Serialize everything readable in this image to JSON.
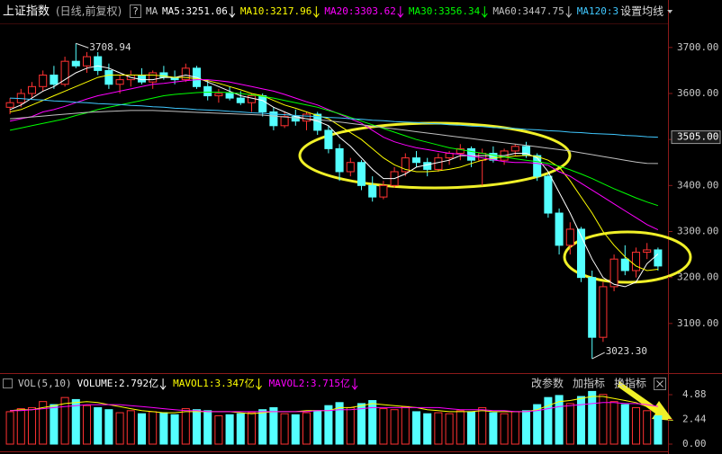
{
  "chart_data": {
    "type": "candlestick",
    "title": "上证指数",
    "subtitle": "(日线,前复权)",
    "header": {
      "help": "?",
      "ma": "MA",
      "settings": "设置均线"
    },
    "up_color": "#ff3232",
    "down_color": "#54ffff",
    "open": [
      3570,
      3580,
      3600,
      3615,
      3640,
      3620,
      3670,
      3660,
      3680,
      3650,
      3620,
      3630,
      3640,
      3625,
      3645,
      3635,
      3630,
      3655,
      3615,
      3595,
      3600,
      3590,
      3580,
      3595,
      3560,
      3530,
      3550,
      3540,
      3555,
      3520,
      3480,
      3430,
      3450,
      3400,
      3375,
      3400,
      3430,
      3460,
      3450,
      3435,
      3460,
      3470,
      3480,
      3455,
      3470,
      3455,
      3475,
      3485,
      3465,
      3420,
      3340,
      3270,
      3305,
      3200,
      3070,
      3180,
      3240,
      3215,
      3255,
      3260
    ],
    "high": [
      3590,
      3610,
      3625,
      3650,
      3660,
      3680,
      3708.94,
      3690,
      3690,
      3665,
      3640,
      3650,
      3655,
      3650,
      3660,
      3650,
      3665,
      3660,
      3630,
      3610,
      3615,
      3605,
      3600,
      3600,
      3570,
      3560,
      3565,
      3560,
      3560,
      3530,
      3490,
      3460,
      3455,
      3420,
      3410,
      3440,
      3470,
      3475,
      3460,
      3470,
      3475,
      3490,
      3485,
      3480,
      3485,
      3480,
      3490,
      3495,
      3470,
      3425,
      3350,
      3320,
      3310,
      3215,
      3190,
      3250,
      3270,
      3265,
      3275,
      3265
    ],
    "low": [
      3555,
      3570,
      3590,
      3605,
      3610,
      3615,
      3655,
      3645,
      3640,
      3610,
      3600,
      3615,
      3620,
      3610,
      3630,
      3620,
      3625,
      3610,
      3585,
      3580,
      3585,
      3575,
      3560,
      3550,
      3520,
      3525,
      3530,
      3520,
      3510,
      3470,
      3410,
      3420,
      3390,
      3365,
      3370,
      3395,
      3420,
      3440,
      3420,
      3430,
      3445,
      3455,
      3440,
      3400,
      3450,
      3445,
      3465,
      3460,
      3410,
      3330,
      3250,
      3250,
      3190,
      3023.3,
      3060,
      3170,
      3205,
      3200,
      3240,
      3215
    ],
    "close": [
      3580,
      3600,
      3615,
      3640,
      3620,
      3670,
      3660,
      3680,
      3650,
      3620,
      3630,
      3640,
      3625,
      3645,
      3635,
      3630,
      3655,
      3615,
      3595,
      3600,
      3590,
      3580,
      3595,
      3560,
      3530,
      3550,
      3540,
      3555,
      3520,
      3480,
      3430,
      3450,
      3400,
      3375,
      3400,
      3430,
      3460,
      3450,
      3435,
      3460,
      3470,
      3480,
      3455,
      3470,
      3455,
      3475,
      3485,
      3465,
      3420,
      3340,
      3270,
      3305,
      3200,
      3070,
      3180,
      3240,
      3215,
      3255,
      3260,
      3225
    ],
    "volume": [
      3.2,
      3.5,
      3.6,
      4.2,
      3.9,
      4.6,
      4.4,
      3.8,
      3.6,
      3.4,
      3.1,
      3.3,
      3.0,
      3.2,
      3.1,
      2.9,
      3.5,
      3.4,
      3.3,
      2.8,
      2.9,
      3.0,
      3.1,
      3.4,
      3.6,
      3.0,
      2.9,
      3.1,
      3.3,
      3.8,
      4.1,
      3.6,
      4.0,
      4.3,
      3.5,
      3.4,
      3.7,
      3.2,
      3.0,
      3.1,
      3.0,
      3.3,
      3.2,
      3.6,
      3.1,
      3.0,
      3.2,
      3.3,
      3.9,
      4.6,
      4.8,
      4.0,
      4.7,
      5.2,
      4.9,
      4.2,
      3.9,
      3.6,
      3.3,
      2.792
    ],
    "series": [
      {
        "name": "MA5:3251.06",
        "color": "#ffffff",
        "values": [
          3565,
          3575,
          3590,
          3605,
          3615,
          3630,
          3645,
          3655,
          3660,
          3655,
          3645,
          3635,
          3630,
          3630,
          3635,
          3635,
          3640,
          3635,
          3625,
          3615,
          3605,
          3595,
          3590,
          3585,
          3570,
          3560,
          3550,
          3545,
          3540,
          3530,
          3505,
          3485,
          3460,
          3435,
          3415,
          3415,
          3425,
          3440,
          3445,
          3450,
          3455,
          3465,
          3465,
          3465,
          3465,
          3465,
          3470,
          3470,
          3460,
          3430,
          3385,
          3340,
          3290,
          3240,
          3200,
          3185,
          3180,
          3190,
          3230,
          3251.06
        ]
      },
      {
        "name": "MA10:3217.96",
        "color": "#ffff00",
        "values": [
          3560,
          3565,
          3575,
          3585,
          3595,
          3605,
          3615,
          3625,
          3635,
          3640,
          3640,
          3640,
          3640,
          3640,
          3638,
          3635,
          3635,
          3632,
          3628,
          3622,
          3615,
          3608,
          3600,
          3595,
          3585,
          3575,
          3568,
          3560,
          3552,
          3545,
          3530,
          3515,
          3500,
          3480,
          3460,
          3445,
          3435,
          3430,
          3430,
          3432,
          3435,
          3440,
          3448,
          3455,
          3460,
          3462,
          3464,
          3466,
          3463,
          3455,
          3440,
          3410,
          3375,
          3340,
          3300,
          3270,
          3245,
          3225,
          3215,
          3217.96
        ]
      },
      {
        "name": "MA20:3303.62",
        "color": "#ff00ff",
        "values": [
          3540,
          3545,
          3550,
          3560,
          3565,
          3572,
          3580,
          3588,
          3595,
          3600,
          3605,
          3610,
          3615,
          3620,
          3622,
          3625,
          3628,
          3630,
          3630,
          3628,
          3625,
          3620,
          3615,
          3610,
          3605,
          3598,
          3590,
          3582,
          3575,
          3565,
          3555,
          3545,
          3535,
          3520,
          3505,
          3495,
          3488,
          3482,
          3478,
          3474,
          3470,
          3468,
          3464,
          3460,
          3456,
          3452,
          3450,
          3450,
          3448,
          3444,
          3430,
          3420,
          3405,
          3390,
          3375,
          3360,
          3345,
          3330,
          3315,
          3303.62
        ]
      },
      {
        "name": "MA30:3356.34",
        "color": "#00ff00",
        "values": [
          3520,
          3525,
          3530,
          3535,
          3540,
          3545,
          3552,
          3558,
          3565,
          3570,
          3575,
          3580,
          3585,
          3590,
          3595,
          3598,
          3600,
          3602,
          3603,
          3603,
          3602,
          3600,
          3597,
          3594,
          3590,
          3585,
          3580,
          3575,
          3570,
          3563,
          3556,
          3548,
          3540,
          3532,
          3524,
          3516,
          3508,
          3500,
          3494,
          3488,
          3482,
          3478,
          3474,
          3470,
          3466,
          3462,
          3458,
          3455,
          3452,
          3448,
          3442,
          3434,
          3425,
          3415,
          3404,
          3393,
          3383,
          3373,
          3364,
          3356.34
        ]
      },
      {
        "name": "MA60:3447.75",
        "color": "#c0c0c0",
        "values": [
          3545,
          3547,
          3549,
          3551,
          3553,
          3555,
          3557,
          3559,
          3560,
          3561,
          3562,
          3563,
          3563,
          3563,
          3562,
          3561,
          3560,
          3559,
          3558,
          3557,
          3556,
          3555,
          3554,
          3553,
          3551,
          3549,
          3547,
          3545,
          3543,
          3541,
          3538,
          3535,
          3532,
          3529,
          3526,
          3523,
          3520,
          3517,
          3514,
          3511,
          3508,
          3505,
          3502,
          3499,
          3496,
          3493,
          3490,
          3487,
          3484,
          3481,
          3478,
          3475,
          3471,
          3467,
          3463,
          3459,
          3455,
          3451,
          3448,
          3447.75
        ]
      },
      {
        "name": "MA120:3",
        "color": "#40c8ff",
        "values": [
          3590,
          3589,
          3587,
          3586,
          3584,
          3583,
          3581,
          3580,
          3578,
          3577,
          3576,
          3574,
          3573,
          3571,
          3570,
          3568,
          3567,
          3565,
          3564,
          3563,
          3561,
          3560,
          3558,
          3557,
          3555,
          3554,
          3552,
          3551,
          3550,
          3548,
          3547,
          3545,
          3544,
          3542,
          3541,
          3539,
          3538,
          3537,
          3535,
          3534,
          3532,
          3531,
          3529,
          3528,
          3526,
          3525,
          3524,
          3522,
          3521,
          3519,
          3518,
          3516,
          3515,
          3513,
          3512,
          3511,
          3509,
          3508,
          3506,
          3505
        ]
      }
    ],
    "ylim": [
      3000,
      3770
    ],
    "yticks": [
      {
        "value": 3100,
        "label": "3100.00"
      },
      {
        "value": 3200,
        "label": "3200.00"
      },
      {
        "value": 3300,
        "label": "3300.00"
      },
      {
        "value": 3400,
        "label": "3400.00"
      },
      {
        "value": 3500,
        "label": "3500.00"
      },
      {
        "value": 3600,
        "label": "3600.00"
      },
      {
        "value": 3700,
        "label": "3700.00"
      }
    ],
    "price_marker": {
      "value": 3505,
      "label": "3505.00"
    },
    "annotations": [
      {
        "value": 3708.94,
        "label": "3708.94"
      },
      {
        "value": 3023.3,
        "label": "3023.30"
      }
    ],
    "volume_pane": {
      "title": "VOL(5,10)",
      "volume_label": "VOLUME:2.792亿",
      "volume_label_color": "#ffffff",
      "buttons": [
        "改参数",
        "加指标",
        "换指标"
      ],
      "series": [
        {
          "name": "MAVOL1:3.347亿",
          "color": "#ffff00",
          "values": [
            3.3,
            3.4,
            3.4,
            3.6,
            3.8,
            4.0,
            4.1,
            4.2,
            4.1,
            3.9,
            3.7,
            3.5,
            3.3,
            3.2,
            3.1,
            3.1,
            3.2,
            3.2,
            3.2,
            3.2,
            3.2,
            3.1,
            3.0,
            3.1,
            3.2,
            3.2,
            3.2,
            3.3,
            3.3,
            3.3,
            3.6,
            3.6,
            3.8,
            4.0,
            3.9,
            3.8,
            3.7,
            3.6,
            3.4,
            3.3,
            3.2,
            3.2,
            3.2,
            3.3,
            3.2,
            3.2,
            3.2,
            3.2,
            3.4,
            3.8,
            4.2,
            4.3,
            4.5,
            4.7,
            4.7,
            4.5,
            4.3,
            4.1,
            3.7,
            3.347
          ]
        },
        {
          "name": "MAVOL2:3.715亿",
          "color": "#ff00ff",
          "values": [
            3.3,
            3.3,
            3.4,
            3.5,
            3.6,
            3.7,
            3.8,
            3.9,
            3.9,
            3.9,
            3.9,
            3.8,
            3.7,
            3.6,
            3.5,
            3.4,
            3.3,
            3.3,
            3.2,
            3.2,
            3.2,
            3.2,
            3.2,
            3.2,
            3.2,
            3.2,
            3.2,
            3.2,
            3.3,
            3.3,
            3.4,
            3.4,
            3.5,
            3.6,
            3.6,
            3.6,
            3.6,
            3.6,
            3.6,
            3.6,
            3.5,
            3.4,
            3.4,
            3.4,
            3.3,
            3.3,
            3.2,
            3.2,
            3.3,
            3.5,
            3.7,
            3.8,
            3.9,
            4.0,
            4.1,
            4.1,
            4.0,
            4.0,
            3.9,
            3.715
          ]
        }
      ],
      "ylim": [
        0,
        5.68
      ],
      "yticks": [
        {
          "value": 0,
          "label": "0.00"
        },
        {
          "value": 2.44,
          "label": "2.44"
        },
        {
          "value": 4.88,
          "label": "4.88"
        }
      ]
    }
  }
}
